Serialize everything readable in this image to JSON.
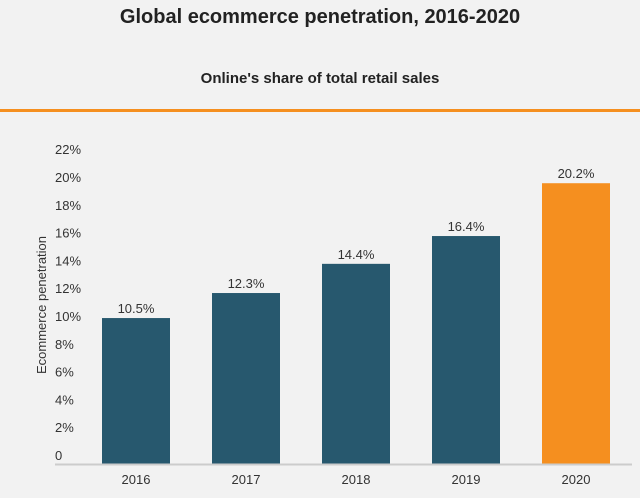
{
  "chart_data": {
    "type": "bar",
    "title": "Global ecommerce penetration, 2016-2020",
    "subtitle": "Online's share of total retail sales",
    "xlabel": "",
    "ylabel": "Ecommerce penetration",
    "categories": [
      "2016",
      "2017",
      "2018",
      "2019",
      "2020"
    ],
    "values": [
      10.5,
      12.3,
      14.4,
      16.4,
      20.2
    ],
    "data_labels": [
      "10.5%",
      "12.3%",
      "14.4%",
      "16.4%",
      "20.2%"
    ],
    "ylim": [
      0,
      22
    ],
    "yticks": [
      "0",
      "2%",
      "4%",
      "6%",
      "8%",
      "10%",
      "12%",
      "14%",
      "16%",
      "18%",
      "20%",
      "22%"
    ],
    "grid": false,
    "colors": {
      "default": "#27586e",
      "highlight": "#f58f1f",
      "rule": "#f58f1f",
      "axis": "#cccccc"
    },
    "highlight_index": 4
  }
}
